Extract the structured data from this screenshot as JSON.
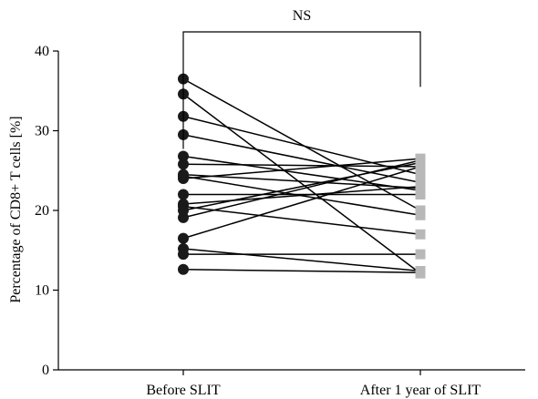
{
  "chart_data": {
    "type": "paired-dot",
    "title": "",
    "xlabel": "",
    "ylabel": "Percentage of CD8+ T cells [%]",
    "ylim": [
      0,
      40
    ],
    "yticks": [
      0,
      10,
      20,
      30,
      40
    ],
    "categories": [
      "Before SLIT",
      "After 1 year of SLIT"
    ],
    "marker_colors": [
      "#1a1a1a",
      "#b8b8b8"
    ],
    "line_color": "#1a1a1a",
    "annotation": "NS",
    "pairs": [
      {
        "before": 36.5,
        "after": 20.0
      },
      {
        "before": 34.6,
        "after": 12.1
      },
      {
        "before": 31.8,
        "after": 24.5
      },
      {
        "before": 29.5,
        "after": 23.5
      },
      {
        "before": 26.8,
        "after": 22.5
      },
      {
        "before": 25.8,
        "after": 25.5
      },
      {
        "before": 24.5,
        "after": 22.8
      },
      {
        "before": 24.0,
        "after": 26.5
      },
      {
        "before": 24.3,
        "after": 19.4
      },
      {
        "before": 22.0,
        "after": 22.0
      },
      {
        "before": 20.8,
        "after": 23.0
      },
      {
        "before": 20.5,
        "after": 17.0
      },
      {
        "before": 20.0,
        "after": 26.0
      },
      {
        "before": 19.1,
        "after": 26.3
      },
      {
        "before": 16.5,
        "after": 25.5
      },
      {
        "before": 15.2,
        "after": 12.4
      },
      {
        "before": 14.5,
        "after": 14.5
      },
      {
        "before": 12.6,
        "after": 12.2
      }
    ]
  }
}
